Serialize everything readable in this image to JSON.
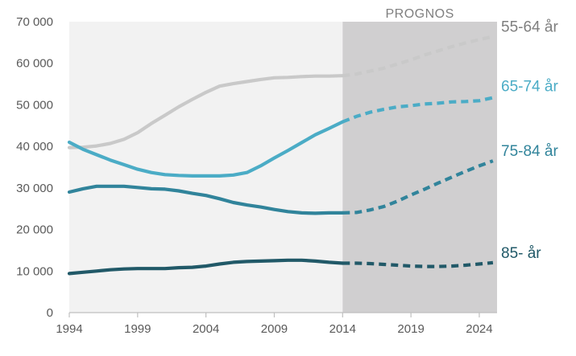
{
  "chart_data": {
    "type": "line",
    "title": "",
    "xlabel": "",
    "ylabel": "",
    "xlim": [
      1994,
      2025.3
    ],
    "ylim": [
      0,
      70000
    ],
    "x_ticks": [
      1994,
      1999,
      2004,
      2009,
      2014,
      2019,
      2024
    ],
    "y_ticks": [
      0,
      10000,
      20000,
      30000,
      40000,
      50000,
      60000,
      70000
    ],
    "y_tick_labels": [
      "0",
      "10 000",
      "20 000",
      "30 000",
      "40 000",
      "50 000",
      "60 000",
      "70 000"
    ],
    "grid": false,
    "forecast": {
      "label": "PROGNOS",
      "start_year": 2014,
      "end_year": 2025.3
    },
    "series": [
      {
        "name": "55-64 år",
        "color": "#c9c9c9",
        "points": [
          [
            1994,
            39700
          ],
          [
            1995,
            39800
          ],
          [
            1996,
            40100
          ],
          [
            1997,
            40700
          ],
          [
            1998,
            41700
          ],
          [
            1999,
            43300
          ],
          [
            2000,
            45500
          ],
          [
            2001,
            47500
          ],
          [
            2002,
            49500
          ],
          [
            2003,
            51300
          ],
          [
            2004,
            53000
          ],
          [
            2005,
            54500
          ],
          [
            2006,
            55100
          ],
          [
            2007,
            55600
          ],
          [
            2008,
            56100
          ],
          [
            2009,
            56500
          ],
          [
            2010,
            56600
          ],
          [
            2011,
            56800
          ],
          [
            2012,
            56900
          ],
          [
            2013,
            56900
          ],
          [
            2014,
            57000
          ],
          [
            2015,
            57400
          ],
          [
            2016,
            58100
          ],
          [
            2017,
            58800
          ],
          [
            2018,
            59800
          ],
          [
            2019,
            60800
          ],
          [
            2020,
            62000
          ],
          [
            2021,
            63000
          ],
          [
            2022,
            64000
          ],
          [
            2023,
            64900
          ],
          [
            2024,
            65700
          ],
          [
            2025,
            66400
          ]
        ]
      },
      {
        "name": "65-74 år",
        "color": "#4bacc6",
        "points": [
          [
            1994,
            41000
          ],
          [
            1995,
            39300
          ],
          [
            1996,
            38000
          ],
          [
            1997,
            36700
          ],
          [
            1998,
            35600
          ],
          [
            1999,
            34500
          ],
          [
            2000,
            33700
          ],
          [
            2001,
            33200
          ],
          [
            2002,
            33000
          ],
          [
            2003,
            32900
          ],
          [
            2004,
            32900
          ],
          [
            2005,
            32900
          ],
          [
            2006,
            33100
          ],
          [
            2007,
            33700
          ],
          [
            2008,
            35300
          ],
          [
            2009,
            37200
          ],
          [
            2010,
            39000
          ],
          [
            2011,
            40900
          ],
          [
            2012,
            42800
          ],
          [
            2013,
            44300
          ],
          [
            2014,
            45900
          ],
          [
            2015,
            47200
          ],
          [
            2016,
            48200
          ],
          [
            2017,
            48900
          ],
          [
            2018,
            49500
          ],
          [
            2019,
            49800
          ],
          [
            2020,
            50200
          ],
          [
            2021,
            50400
          ],
          [
            2022,
            50700
          ],
          [
            2023,
            50800
          ],
          [
            2024,
            51000
          ],
          [
            2025,
            51700
          ]
        ]
      },
      {
        "name": "75-84 år",
        "color": "#31849b",
        "points": [
          [
            1994,
            29000
          ],
          [
            1995,
            29800
          ],
          [
            1996,
            30400
          ],
          [
            1997,
            30400
          ],
          [
            1998,
            30400
          ],
          [
            1999,
            30100
          ],
          [
            2000,
            29800
          ],
          [
            2001,
            29700
          ],
          [
            2002,
            29300
          ],
          [
            2003,
            28700
          ],
          [
            2004,
            28200
          ],
          [
            2005,
            27400
          ],
          [
            2006,
            26500
          ],
          [
            2007,
            25900
          ],
          [
            2008,
            25400
          ],
          [
            2009,
            24800
          ],
          [
            2010,
            24300
          ],
          [
            2011,
            24000
          ],
          [
            2012,
            23900
          ],
          [
            2013,
            24000
          ],
          [
            2014,
            24000
          ],
          [
            2015,
            24100
          ],
          [
            2016,
            24700
          ],
          [
            2017,
            25500
          ],
          [
            2018,
            26800
          ],
          [
            2019,
            28300
          ],
          [
            2020,
            29700
          ],
          [
            2021,
            31200
          ],
          [
            2022,
            32600
          ],
          [
            2023,
            34000
          ],
          [
            2024,
            35300
          ],
          [
            2025,
            36500
          ]
        ]
      },
      {
        "name": "85- år",
        "color": "#215968",
        "points": [
          [
            1994,
            9400
          ],
          [
            1995,
            9700
          ],
          [
            1996,
            10000
          ],
          [
            1997,
            10300
          ],
          [
            1998,
            10500
          ],
          [
            1999,
            10600
          ],
          [
            2000,
            10600
          ],
          [
            2001,
            10600
          ],
          [
            2002,
            10800
          ],
          [
            2003,
            10900
          ],
          [
            2004,
            11200
          ],
          [
            2005,
            11700
          ],
          [
            2006,
            12100
          ],
          [
            2007,
            12300
          ],
          [
            2008,
            12400
          ],
          [
            2009,
            12500
          ],
          [
            2010,
            12600
          ],
          [
            2011,
            12600
          ],
          [
            2012,
            12400
          ],
          [
            2013,
            12100
          ],
          [
            2014,
            11900
          ],
          [
            2015,
            11900
          ],
          [
            2016,
            11800
          ],
          [
            2017,
            11600
          ],
          [
            2018,
            11400
          ],
          [
            2019,
            11200
          ],
          [
            2020,
            11100
          ],
          [
            2021,
            11100
          ],
          [
            2022,
            11200
          ],
          [
            2023,
            11400
          ],
          [
            2024,
            11700
          ],
          [
            2025,
            12000
          ]
        ]
      }
    ]
  }
}
